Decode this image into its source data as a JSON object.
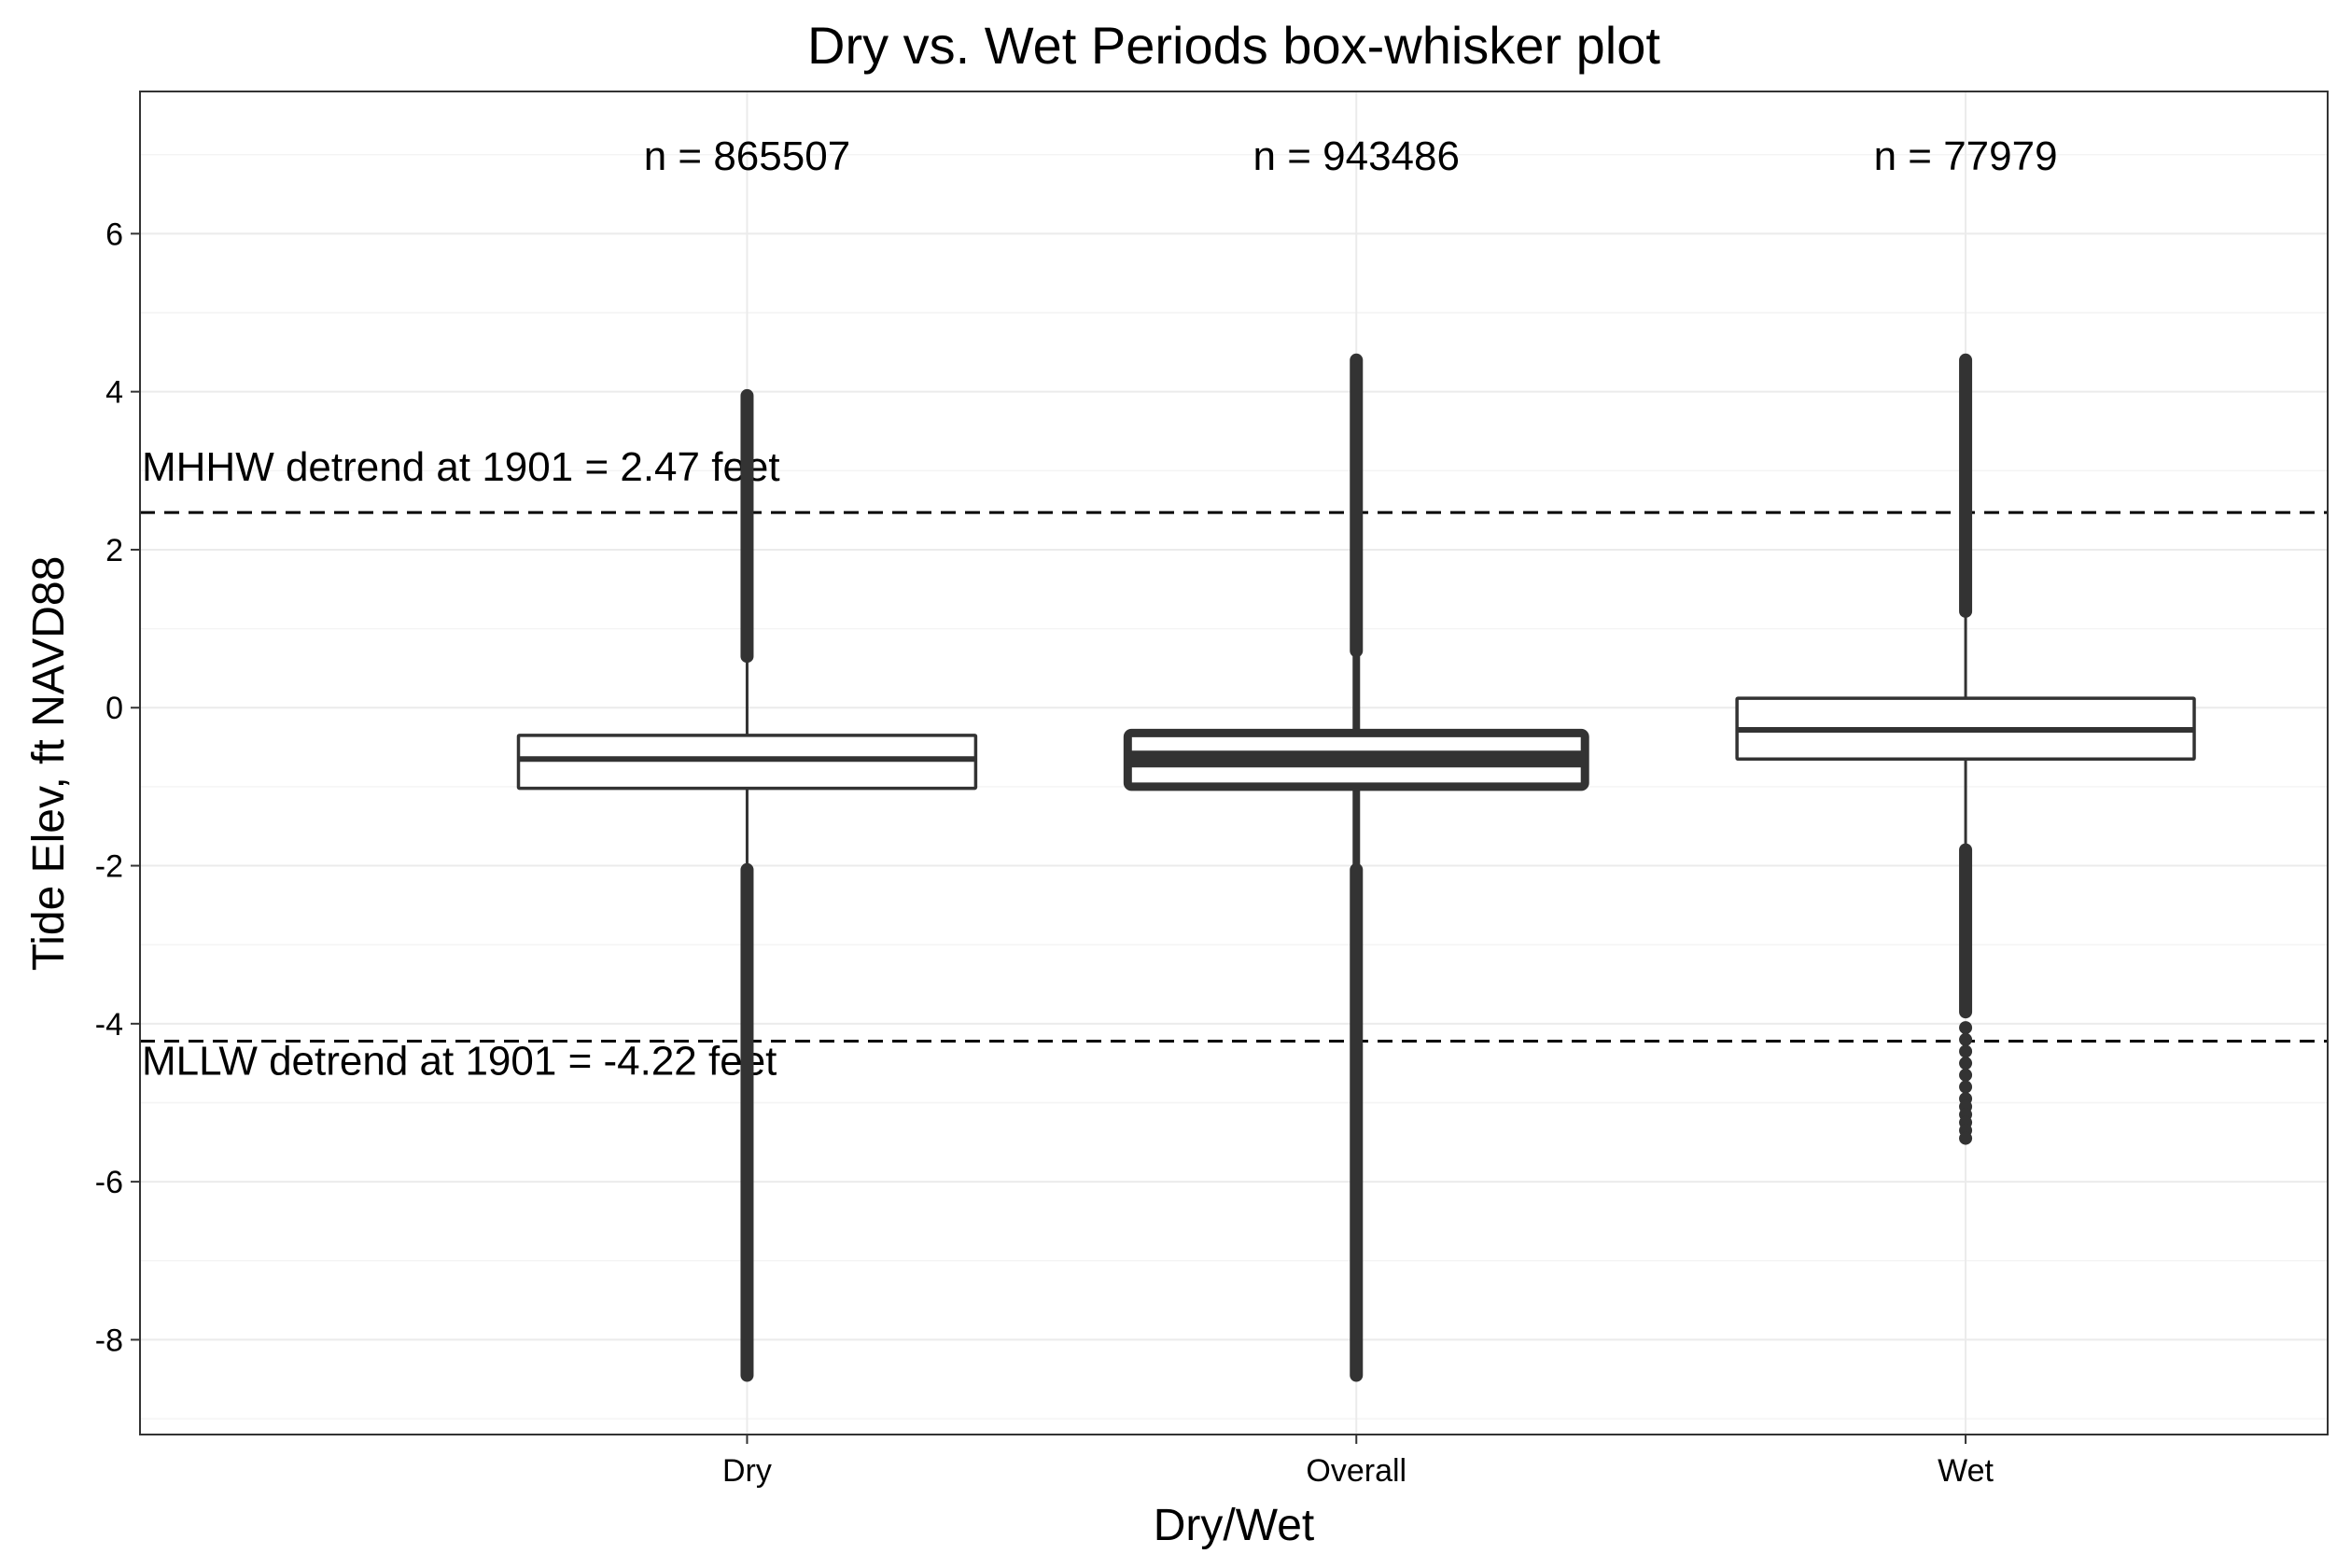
{
  "chart_data": {
    "type": "box",
    "title": "Dry vs. Wet Periods box-whisker plot",
    "xlabel": "Dry/Wet",
    "ylabel": "Tide Elev, ft NAVD88",
    "ylim": [
      -9.2,
      7.8
    ],
    "yticks": [
      -8,
      -6,
      -4,
      -2,
      0,
      2,
      4,
      6
    ],
    "ytick_labels": [
      "-8",
      "-6",
      "-4",
      "-2",
      "0",
      "2",
      "4",
      "6"
    ],
    "categories": [
      "Dry",
      "Overall",
      "Wet"
    ],
    "grid": true,
    "boxes": [
      {
        "category": "Dry",
        "n_label": "n = 865507",
        "q1": -1.02,
        "median": -0.65,
        "q3": -0.35,
        "whisker_low": -2.02,
        "whisker_high": 0.62,
        "outlier_ranges": [
          [
            0.65,
            3.95
          ],
          [
            -8.45,
            -2.05
          ]
        ],
        "outlier_points": [],
        "thick": false
      },
      {
        "category": "Overall",
        "n_label": "n = 943486",
        "q1": -1.0,
        "median": -0.65,
        "q3": -0.32,
        "whisker_low": -2.0,
        "whisker_high": 0.7,
        "outlier_ranges": [
          [
            0.72,
            4.4
          ],
          [
            -8.45,
            -2.05
          ]
        ],
        "outlier_points": [],
        "thick": true
      },
      {
        "category": "Wet",
        "n_label": "n = 77979",
        "q1": -0.65,
        "median": -0.28,
        "q3": 0.12,
        "whisker_low": -1.78,
        "whisker_high": 1.2,
        "outlier_ranges": [
          [
            1.22,
            4.4
          ],
          [
            -3.85,
            -1.8
          ]
        ],
        "outlier_points": [
          -4.05,
          -4.2,
          -4.35,
          -4.5,
          -4.65,
          -4.8,
          -4.95,
          -5.05,
          -5.15,
          -5.25,
          -5.35,
          -5.45
        ],
        "thick": false
      }
    ],
    "reference_lines": [
      {
        "value": 2.47,
        "label": "MHHW detrend at 1901 = 2.47 feet",
        "style": "dashed"
      },
      {
        "value": -4.22,
        "label": "MLLW detrend at 1901 = -4.22 feet",
        "style": "dashed"
      }
    ],
    "colors": {
      "box_stroke": "#333333",
      "box_fill": "#ffffff",
      "outlier": "#333333",
      "grid": "#ebebeb",
      "panel_border": "#333333"
    }
  }
}
